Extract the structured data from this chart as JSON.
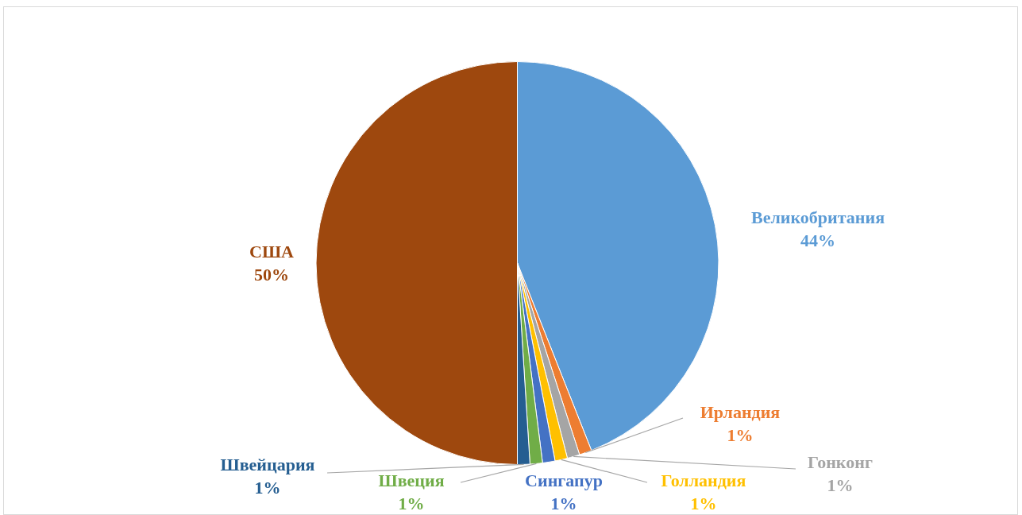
{
  "chart_data": {
    "type": "pie",
    "categories": [
      "Великобритания",
      "Ирландия",
      "Гонконг",
      "Голландия",
      "Сингапур",
      "Швеция",
      "Швейцария",
      "США"
    ],
    "values": [
      44,
      1,
      1,
      1,
      1,
      1,
      1,
      50
    ],
    "colors": [
      "#5b9bd5",
      "#ed7d31",
      "#a5a5a5",
      "#ffc000",
      "#4472c4",
      "#70ad47",
      "#255e91",
      "#9e480e"
    ],
    "value_labels": [
      "44%",
      "1%",
      "1%",
      "1%",
      "1%",
      "1%",
      "1%",
      "50%"
    ],
    "legend": false
  }
}
